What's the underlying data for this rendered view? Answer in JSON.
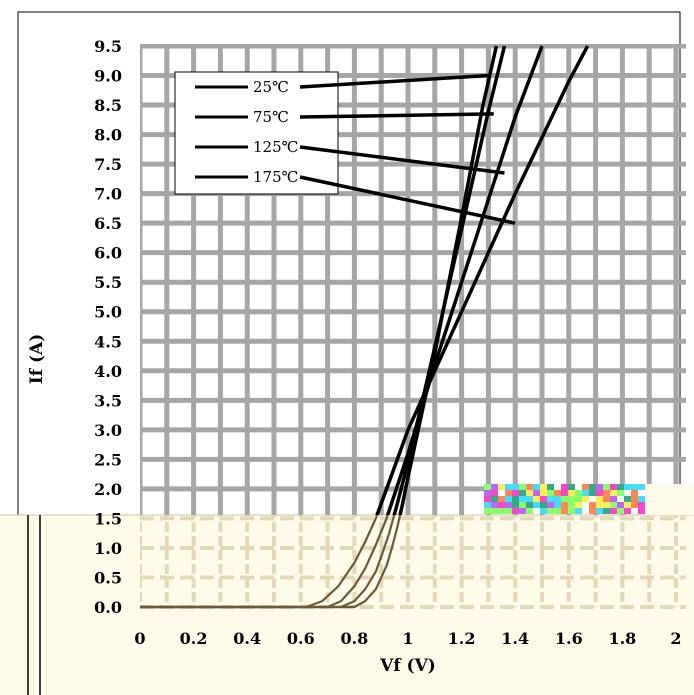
{
  "chart_data": {
    "type": "line",
    "title": "",
    "xlabel": "Vf (V)",
    "ylabel": "If (A)",
    "xlim": [
      0,
      2
    ],
    "ylim": [
      0,
      9.5
    ],
    "x_ticks": [
      "0",
      "0.2",
      "0.4",
      "0.6",
      "0.8",
      "1",
      "1.2",
      "1.4",
      "1.6",
      "1.8",
      "2"
    ],
    "y_ticks": [
      "0.0",
      "0.5",
      "1.0",
      "1.5",
      "2.0",
      "2.5",
      "3.0",
      "3.5",
      "4.0",
      "4.5",
      "5.0",
      "5.5",
      "6.0",
      "6.5",
      "7.0",
      "7.5",
      "8.0",
      "8.5",
      "9.0",
      "9.5"
    ],
    "grid": true,
    "legend_position": "top-left",
    "series": [
      {
        "name": "25℃",
        "x": [
          0.8,
          0.84,
          0.88,
          0.9,
          0.92,
          0.94,
          0.96,
          0.98,
          1.0,
          1.1,
          1.2,
          1.28,
          1.33
        ],
        "y": [
          0.0,
          0.1,
          0.3,
          0.5,
          0.7,
          1.0,
          1.35,
          1.75,
          2.2,
          4.3,
          6.6,
          8.5,
          9.5
        ]
      },
      {
        "name": "75℃",
        "x": [
          0.75,
          0.8,
          0.84,
          0.88,
          0.9,
          0.93,
          0.96,
          0.98,
          1.0,
          1.1,
          1.2,
          1.3,
          1.36
        ],
        "y": [
          0.0,
          0.1,
          0.3,
          0.6,
          0.85,
          1.25,
          1.75,
          2.1,
          2.45,
          4.4,
          6.4,
          8.4,
          9.5
        ]
      },
      {
        "name": "125℃",
        "x": [
          0.7,
          0.75,
          0.8,
          0.84,
          0.88,
          0.92,
          0.96,
          1.0,
          1.1,
          1.2,
          1.3,
          1.4,
          1.5
        ],
        "y": [
          0.0,
          0.1,
          0.35,
          0.65,
          1.05,
          1.5,
          2.05,
          2.6,
          4.1,
          5.5,
          6.9,
          8.3,
          9.5
        ]
      },
      {
        "name": "175℃",
        "x": [
          0.62,
          0.68,
          0.74,
          0.8,
          0.84,
          0.88,
          0.92,
          0.96,
          1.0,
          1.2,
          1.4,
          1.6,
          1.67
        ],
        "y": [
          0.0,
          0.1,
          0.35,
          0.75,
          1.1,
          1.5,
          2.0,
          2.5,
          3.0,
          5.0,
          7.0,
          8.9,
          9.5
        ]
      }
    ]
  },
  "colors": {
    "upper_background": "#ffffff",
    "upper_grid": "#a6a6a6",
    "lower_background": "#fdfbe8",
    "lower_grid": "#e4d9b6",
    "upper_curve": "#000000",
    "lower_curve": "#6b5a3a",
    "noise_block": [
      "#ff44cc",
      "#44ddff",
      "#ffee55",
      "#88ff66",
      "#bb66ff",
      "#ff8855",
      "#ffffff",
      "#33aa88"
    ]
  }
}
